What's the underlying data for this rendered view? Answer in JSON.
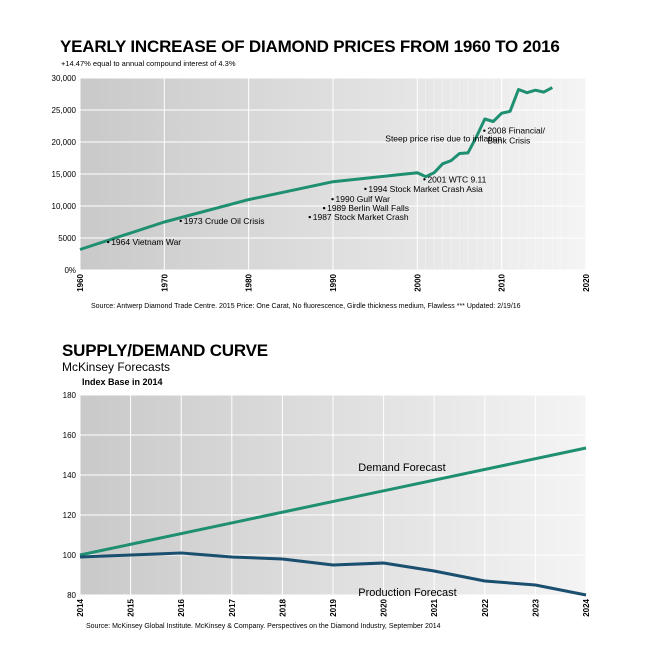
{
  "chart_data": [
    {
      "type": "line",
      "title": "YEARLY INCREASE OF DIAMOND PRICES FROM 1960 TO 2016",
      "subtitle": "+14.47% equal to annual compound interest of 4.3%",
      "source": "Source: Antwerp Diamond Trade Centre. 2015 Price: One Carat, No fluorescence, Girdle thickness medium, Flawless *** Updated: 2/19/16",
      "xlim": [
        1960,
        2020
      ],
      "ylim": [
        0,
        30000
      ],
      "x_ticks": [
        "1960",
        "1970",
        "1980",
        "1990",
        "2000",
        "2010",
        "2020"
      ],
      "y_ticks": [
        {
          "value": 0,
          "label": "0%"
        },
        {
          "value": 5000,
          "label": "5000"
        },
        {
          "value": 10000,
          "label": "10,000"
        },
        {
          "value": 15000,
          "label": "15,000"
        },
        {
          "value": 20000,
          "label": "20,000"
        },
        {
          "value": 25000,
          "label": "25,000"
        },
        {
          "value": 30000,
          "label": "30,000"
        }
      ],
      "grid": true,
      "color": "#1f8f72",
      "series": [
        {
          "x": [
            1960,
            1970,
            1980,
            1990,
            2000,
            2001,
            2002,
            2003,
            2004,
            2005,
            2006,
            2007,
            2008,
            2009,
            2010,
            2011,
            2012,
            2013,
            2014,
            2015,
            2016
          ],
          "y": [
            3200,
            7500,
            11000,
            13800,
            15200,
            14600,
            15200,
            16600,
            17100,
            18200,
            18300,
            20800,
            23600,
            23200,
            24500,
            24800,
            28200,
            27700,
            28100,
            27800,
            28500
          ]
        }
      ],
      "annotations": [
        {
          "text": "1964 Vietnam War",
          "x": 1963.7,
          "y": 3900
        },
        {
          "text": "1973 Crude Oil Crisis",
          "x": 1972.3,
          "y": 7200
        },
        {
          "text": "1987 Stock Market Crash",
          "x": 1987.6,
          "y": 7800
        },
        {
          "text": "1989 Berlin Wall Falls",
          "x": 1989.3,
          "y": 9200
        },
        {
          "text": "1990 Gulf War",
          "x": 1990.3,
          "y": 10600
        },
        {
          "text": "1994 Stock Market Crash Asia",
          "x": 1994.2,
          "y": 12200
        },
        {
          "text": "2001 WTC 9.11",
          "x": 2001.2,
          "y": 13700
        },
        {
          "text": "2008 Financial/\nBank Crisis",
          "x": 2008.3,
          "y": 21300
        },
        {
          "text": "Steep price rise due to inflation",
          "x": 1996.2,
          "y": 20100
        }
      ]
    },
    {
      "type": "line",
      "title": "SUPPLY/DEMAND CURVE",
      "subtitle": "McKinsey Forecasts",
      "subtitle2": "Index Base in 2014",
      "source": "Source: McKinsey Global Institute. McKinsey & Company. Perspectives on the Diamond Industry, September 2014",
      "xlim": [
        2014,
        2024
      ],
      "ylim": [
        80,
        180
      ],
      "x_ticks": [
        "2014",
        "2015",
        "2016",
        "2017",
        "2018",
        "2019",
        "2020",
        "2021",
        "2022",
        "2023",
        "2024"
      ],
      "y_ticks": [
        {
          "value": 80,
          "label": "80"
        },
        {
          "value": 100,
          "label": "100"
        },
        {
          "value": 120,
          "label": "120"
        },
        {
          "value": 140,
          "label": "140"
        },
        {
          "value": 160,
          "label": "160"
        },
        {
          "value": 180,
          "label": "180"
        }
      ],
      "grid": true,
      "series": [
        {
          "name": "Demand Forecast",
          "color": "#1f8f72",
          "x": [
            2014,
            2024
          ],
          "y": [
            100,
            153.5
          ]
        },
        {
          "name": "Production Forecast",
          "color": "#1b4f6f",
          "x": [
            2014,
            2015,
            2016,
            2017,
            2018,
            2019,
            2020,
            2021,
            2022,
            2023,
            2024
          ],
          "y": [
            99,
            100,
            101,
            99,
            98,
            95,
            96,
            92,
            87,
            85,
            80
          ]
        }
      ]
    }
  ]
}
